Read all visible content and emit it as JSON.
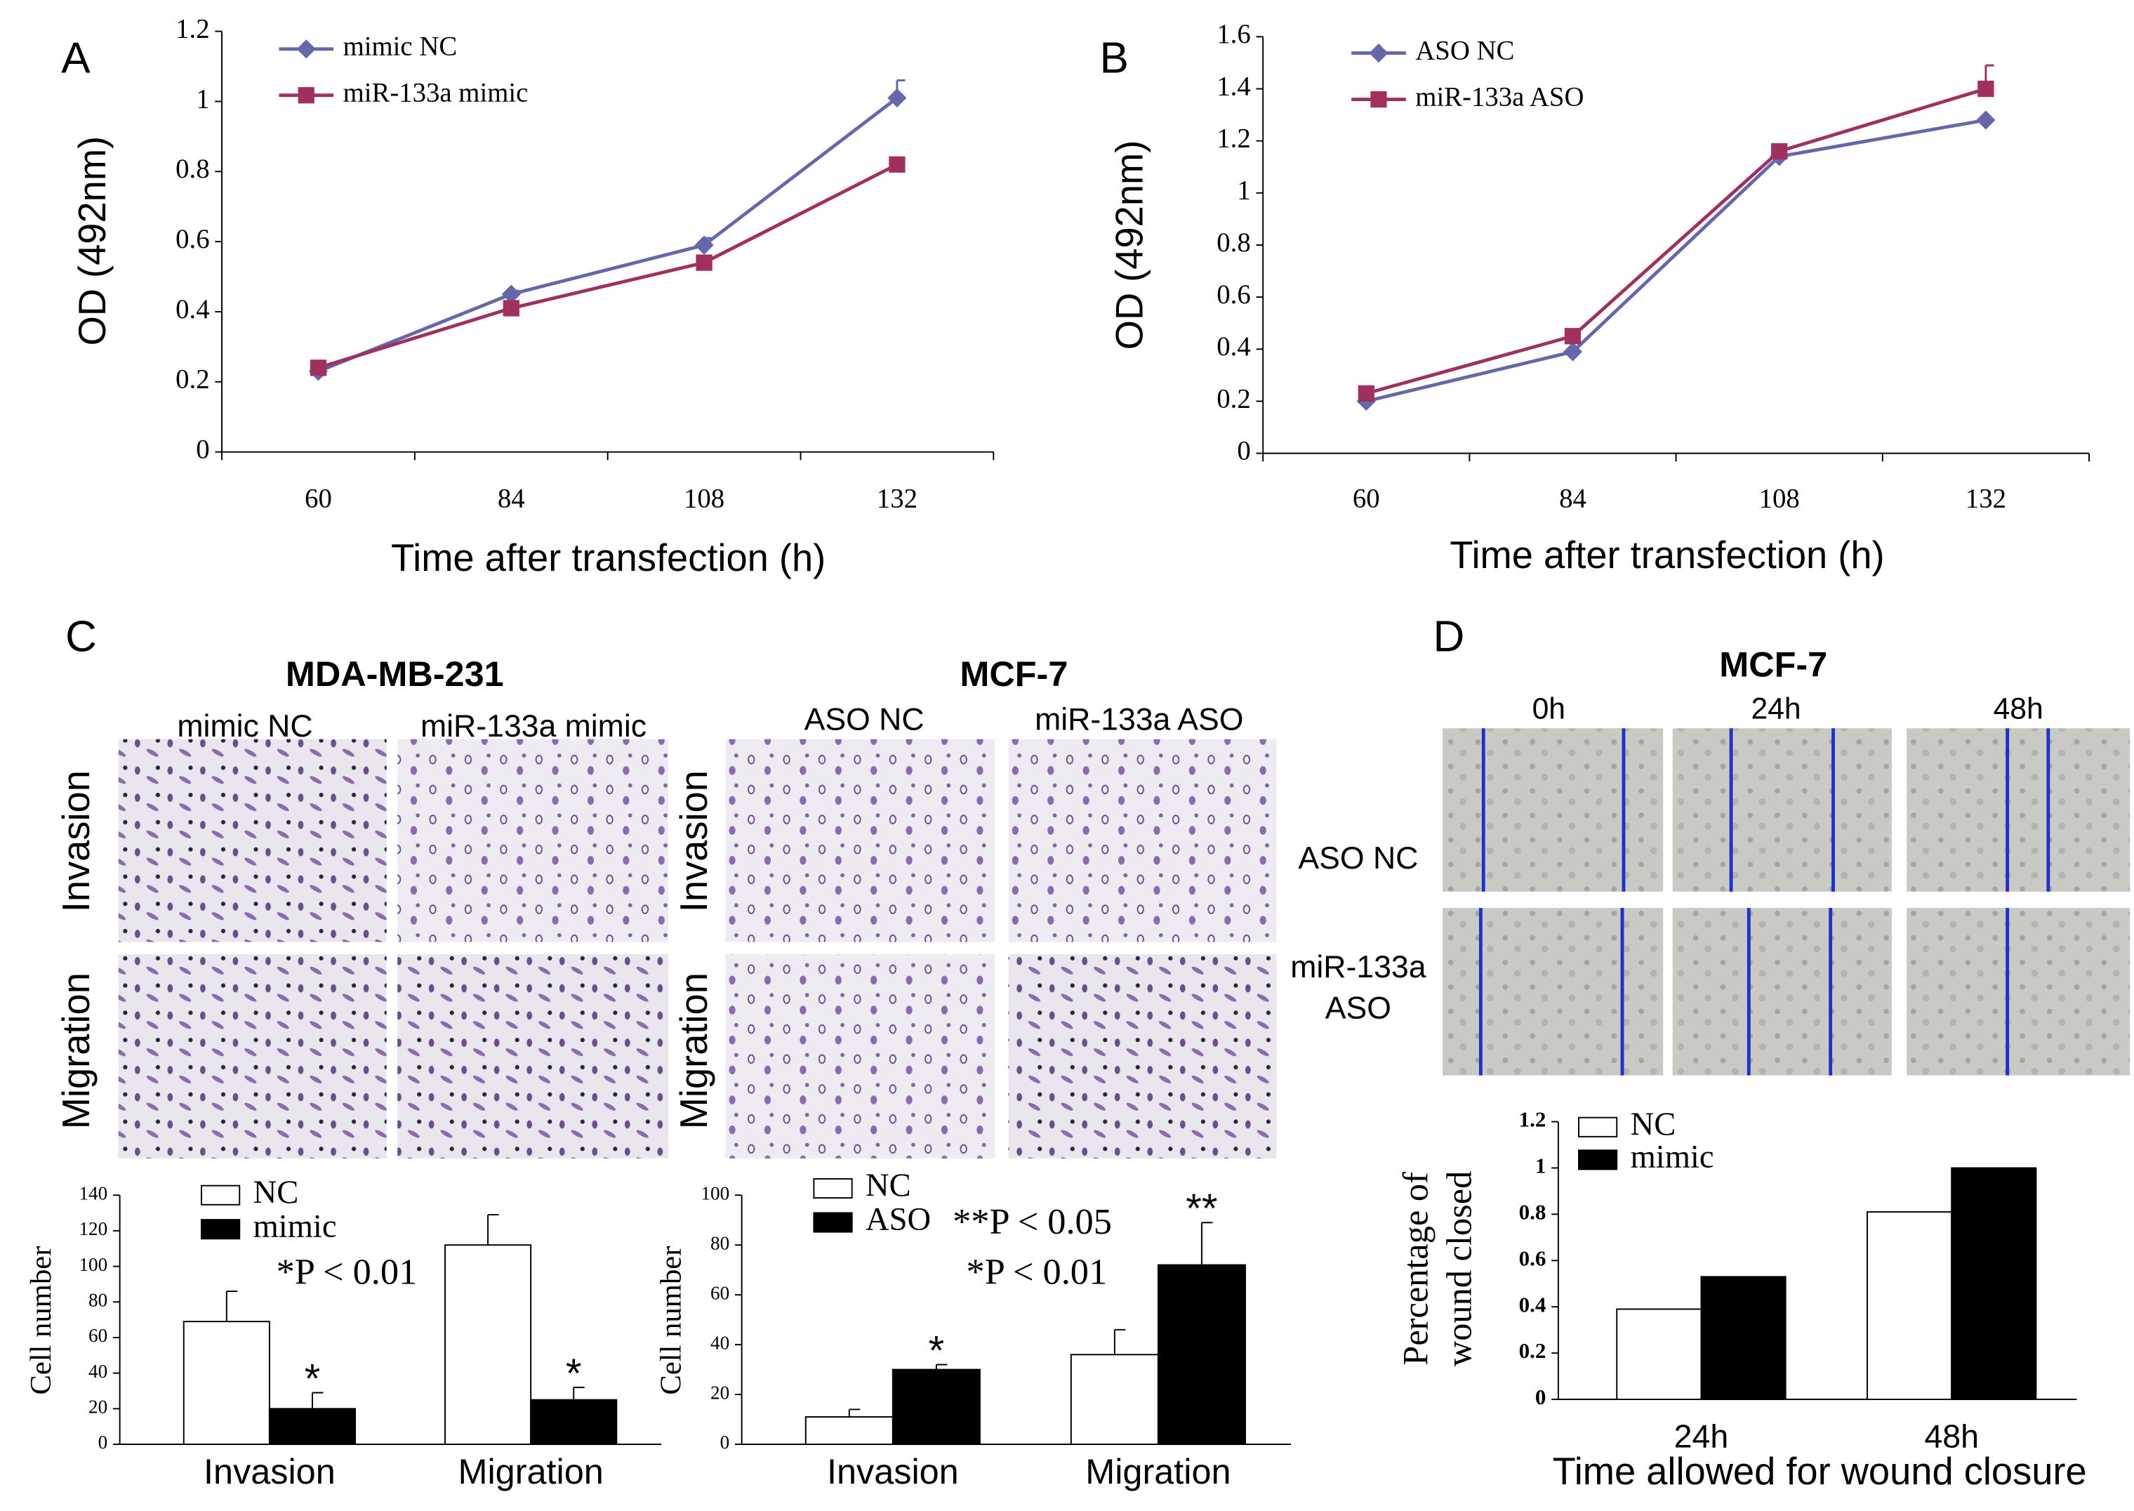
{
  "panel_labels": [
    "A",
    "B",
    "C",
    "D"
  ],
  "chart_data": [
    {
      "type": "line",
      "ylabel": "OD (492nm)",
      "xlabel": "Time after transfection (h)",
      "categories": [
        "60",
        "84",
        "108",
        "132"
      ],
      "ylim": [
        0,
        1.2
      ],
      "yticks": [
        0,
        0.2,
        0.4,
        0.6,
        0.8,
        1,
        1.2
      ],
      "series": [
        {
          "name": "mimic NC",
          "color": "#6666aa",
          "marker": "diamond",
          "values": [
            0.23,
            0.45,
            0.59,
            1.01
          ],
          "errors": [
            0.01,
            0.01,
            0.02,
            0.05
          ]
        },
        {
          "name": "miR-133a mimic",
          "color": "#a0305e",
          "marker": "square",
          "values": [
            0.24,
            0.41,
            0.54,
            0.82
          ]
        }
      ]
    },
    {
      "type": "line",
      "ylabel": "OD (492nm)",
      "xlabel": "Time after transfection (h)",
      "categories": [
        "60",
        "84",
        "108",
        "132"
      ],
      "ylim": [
        0,
        1.6
      ],
      "yticks": [
        0,
        0.2,
        0.4,
        0.6,
        0.8,
        1,
        1.2,
        1.4,
        1.6
      ],
      "series": [
        {
          "name": "ASO NC",
          "color": "#6666aa",
          "marker": "diamond",
          "values": [
            0.2,
            0.39,
            1.14,
            1.28
          ]
        },
        {
          "name": "miR-133a ASO",
          "color": "#a0305e",
          "marker": "square",
          "values": [
            0.23,
            0.45,
            1.16,
            1.4
          ],
          "errors": [
            0.01,
            0.01,
            0.01,
            0.09
          ]
        }
      ]
    },
    {
      "type": "bar",
      "ylabel": "Cell number",
      "categories": [
        "Invasion",
        "Migration"
      ],
      "ylim": [
        0,
        140
      ],
      "yticks": [
        0,
        20,
        40,
        60,
        80,
        100,
        120,
        140
      ],
      "annotations": [
        "*P < 0.01"
      ],
      "series": [
        {
          "name": "NC",
          "color": "#ffffff",
          "values": [
            69,
            112
          ],
          "errors": [
            17,
            17
          ]
        },
        {
          "name": "mimic",
          "color": "#000000",
          "values": [
            20,
            25
          ],
          "errors": [
            9,
            7
          ],
          "significance": [
            "*",
            "*"
          ]
        }
      ]
    },
    {
      "type": "bar",
      "ylabel": "Cell number",
      "categories": [
        "Invasion",
        "Migration"
      ],
      "ylim": [
        0,
        100
      ],
      "yticks": [
        0,
        20,
        40,
        60,
        80,
        100
      ],
      "annotations": [
        "**P < 0.05",
        "*P < 0.01"
      ],
      "series": [
        {
          "name": "NC",
          "color": "#ffffff",
          "values": [
            11,
            36
          ],
          "errors": [
            3,
            10
          ]
        },
        {
          "name": "ASO",
          "color": "#000000",
          "values": [
            30,
            72
          ],
          "errors": [
            2,
            17
          ],
          "significance": [
            "*",
            "**"
          ]
        }
      ]
    },
    {
      "type": "bar",
      "ylabel": [
        "Percentage of",
        "wound closed"
      ],
      "xlabel": "Time allowed for wound closure",
      "categories": [
        "24h",
        "48h"
      ],
      "ylim": [
        0,
        1.2
      ],
      "yticks": [
        0,
        0.2,
        0.4,
        0.6,
        0.8,
        1,
        1.2
      ],
      "series": [
        {
          "name": "NC",
          "color": "#ffffff",
          "values": [
            0.39,
            0.81
          ]
        },
        {
          "name": "mimic",
          "color": "#000000",
          "values": [
            0.53,
            1.0
          ]
        }
      ]
    }
  ],
  "photo_panels": {
    "c_left": {
      "title": "MDA-MB-231",
      "columns": [
        "mimic NC",
        "miR-133a mimic"
      ],
      "rows": [
        "Invasion",
        "Migration"
      ]
    },
    "c_right": {
      "title": "MCF-7",
      "columns": [
        "ASO NC",
        "miR-133a ASO"
      ],
      "rows": [
        "Invasion",
        "Migration"
      ]
    },
    "d": {
      "title": "MCF-7",
      "columns": [
        "0h",
        "24h",
        "48h"
      ],
      "rows": [
        [
          "ASO NC"
        ],
        [
          "miR-133a",
          "ASO"
        ]
      ]
    }
  }
}
